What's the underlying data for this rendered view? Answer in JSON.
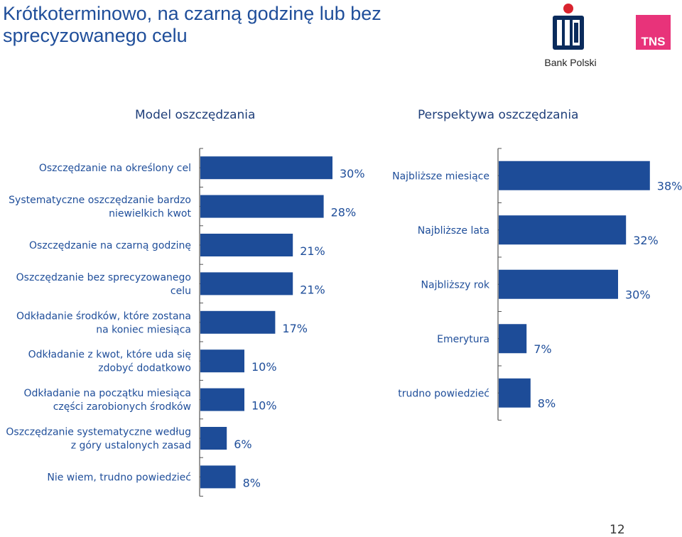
{
  "title": "Krótkoterminowo, na czarną godzinę lub bez sprecyzowanego celu",
  "logos": {
    "pko": "Bank Polski",
    "tns": "TNS"
  },
  "page_number": "12",
  "colors": {
    "bar": "#1d4c98",
    "text": "#1f4e9a",
    "axis": "#555555"
  },
  "chart_data": [
    {
      "type": "bar",
      "orientation": "horizontal",
      "title": "Model oszczędzania",
      "categories": [
        "Oszczędzanie na określony cel",
        "Systematyczne oszczędzanie bardzo niewielkich kwot",
        "Oszczędzanie na czarną godzinę",
        "Oszczędzanie bez sprecyzowanego celu",
        "Odkładanie środków, które zostana na koniec miesiąca",
        "Odkładanie z kwot, które uda się zdobyć dodatkowo",
        "Odkładanie na początku miesiąca części zarobionych środków",
        "Oszczędzanie systematyczne według z góry ustalonych zasad",
        "Nie wiem, trudno powiedzieć"
      ],
      "label_lines": [
        [
          "Oszczędzanie na określony cel"
        ],
        [
          "Systematyczne oszczędzanie bardzo",
          "niewielkich kwot"
        ],
        [
          "Oszczędzanie na czarną godzinę"
        ],
        [
          "Oszczędzanie bez sprecyzowanego",
          "celu"
        ],
        [
          "Odkładanie środków, które zostana",
          "na koniec miesiąca"
        ],
        [
          "Odkładanie z kwot, które uda się",
          "zdobyć dodatkowo"
        ],
        [
          "Odkładanie na początku miesiąca",
          "części zarobionych  środków"
        ],
        [
          "Oszczędzanie systematyczne według",
          "z góry ustalonych zasad"
        ],
        [
          "Nie wiem, trudno powiedzieć"
        ]
      ],
      "values": [
        30,
        28,
        21,
        21,
        17,
        10,
        10,
        6,
        8
      ],
      "value_labels": [
        "30%",
        "28%",
        "21%",
        "21%",
        "17%",
        "10%",
        "10%",
        "6%",
        "8%"
      ]
    },
    {
      "type": "bar",
      "orientation": "horizontal",
      "title": "Perspektywa oszczędzania",
      "categories": [
        "Najbliższe miesiące",
        "Najbliższe lata",
        "Najbliższy rok",
        "Emerytura",
        "trudno powiedzieć"
      ],
      "label_lines": [
        [
          "Najbliższe miesiące"
        ],
        [
          "Najbliższe lata"
        ],
        [
          "Najbliższy rok"
        ],
        [
          "Emerytura"
        ],
        [
          "trudno powiedzieć"
        ]
      ],
      "values": [
        38,
        32,
        30,
        7,
        8
      ],
      "value_labels": [
        "38%",
        "32%",
        "30%",
        "7%",
        "8%"
      ]
    }
  ]
}
